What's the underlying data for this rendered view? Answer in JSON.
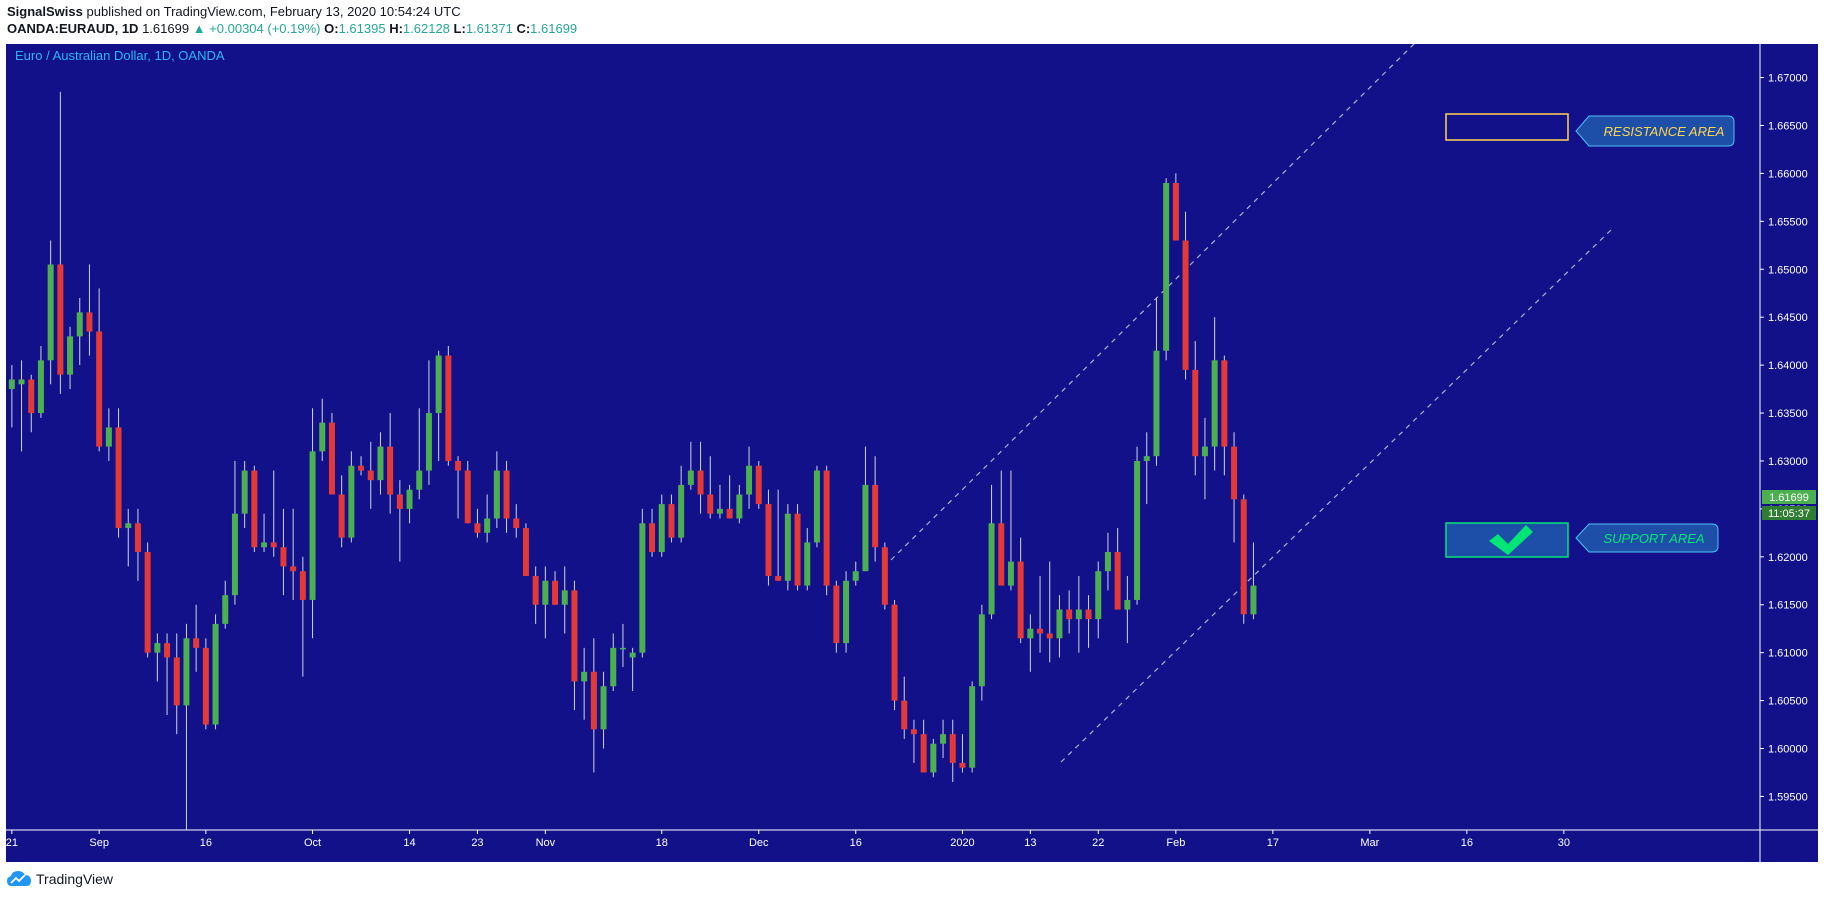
{
  "header": {
    "author": "SignalSwiss",
    "published": "published on TradingView.com, February 13, 2020 10:54:24 UTC",
    "symbol": "OANDA:EURAUD, 1D",
    "last": "1.61699",
    "change": "▲ +0.00304 (+0.19%)",
    "o_label": "O:",
    "o_val": "1.61395",
    "h_label": "H:",
    "h_val": "1.62128",
    "l_label": "L:",
    "l_val": "1.61371",
    "c_label": "C:",
    "c_val": "1.61699"
  },
  "footer": {
    "brand": "TradingView"
  },
  "chart_data": {
    "type": "candlestick",
    "title": "Euro / Australian Dollar, 1D, OANDA",
    "ylim": [
      1.5915,
      1.6735
    ],
    "y_ticks": [
      "1.67000",
      "1.66500",
      "1.66000",
      "1.65500",
      "1.65000",
      "1.64500",
      "1.64000",
      "1.63500",
      "1.63000",
      "1.62500",
      "1.62000",
      "1.61500",
      "1.61000",
      "1.60500",
      "1.60000",
      "1.59500"
    ],
    "x_ticks": [
      {
        "label": "21",
        "i": 0.5
      },
      {
        "label": "Sep",
        "i": 9.5
      },
      {
        "label": "16",
        "i": 20.5
      },
      {
        "label": "Oct",
        "i": 31.5
      },
      {
        "label": "14",
        "i": 41.5
      },
      {
        "label": "23",
        "i": 48.5
      },
      {
        "label": "Nov",
        "i": 55.5
      },
      {
        "label": "18",
        "i": 67.5
      },
      {
        "label": "Dec",
        "i": 77.5
      },
      {
        "label": "16",
        "i": 87.5
      },
      {
        "label": "2020",
        "i": 98.5
      },
      {
        "label": "13",
        "i": 105.5
      },
      {
        "label": "22",
        "i": 112.5
      },
      {
        "label": "Feb",
        "i": 120.5
      },
      {
        "label": "17",
        "i": 130.5
      },
      {
        "label": "Mar",
        "i": 140.5
      },
      {
        "label": "16",
        "i": 150.5
      },
      {
        "label": "30",
        "i": 160.5
      }
    ],
    "current_price_label": "1.61699",
    "countdown_label": "11:05:37",
    "annotations": {
      "resistance_label": "RESISTANCE AREA",
      "support_label": "SUPPORT AREA"
    },
    "colors": {
      "background": "#12118a",
      "up": "#4caf50",
      "down": "#e53935",
      "text": "#ffffff",
      "title": "#29b6f6",
      "resistance_text": "#ffd54f",
      "support_text": "#00e676"
    },
    "candles": [
      [
        1.6375,
        1.64,
        1.6335,
        1.6385
      ],
      [
        1.638,
        1.6405,
        1.631,
        1.6385
      ],
      [
        1.6385,
        1.639,
        1.633,
        1.635
      ],
      [
        1.635,
        1.642,
        1.6345,
        1.6405
      ],
      [
        1.6405,
        1.653,
        1.638,
        1.6505
      ],
      [
        1.6505,
        1.6685,
        1.637,
        1.639
      ],
      [
        1.639,
        1.644,
        1.6375,
        1.643
      ],
      [
        1.643,
        1.647,
        1.64,
        1.6455
      ],
      [
        1.6455,
        1.6505,
        1.641,
        1.6435
      ],
      [
        1.6435,
        1.648,
        1.631,
        1.6315
      ],
      [
        1.6315,
        1.6355,
        1.63,
        1.6335
      ],
      [
        1.6335,
        1.6355,
        1.622,
        1.623
      ],
      [
        1.623,
        1.625,
        1.619,
        1.6235
      ],
      [
        1.6235,
        1.625,
        1.6175,
        1.6205
      ],
      [
        1.6205,
        1.6215,
        1.6095,
        1.61
      ],
      [
        1.61,
        1.612,
        1.607,
        1.611
      ],
      [
        1.611,
        1.612,
        1.6035,
        1.6095
      ],
      [
        1.6095,
        1.612,
        1.6015,
        1.6045
      ],
      [
        1.6045,
        1.613,
        1.5915,
        1.6115
      ],
      [
        1.6115,
        1.615,
        1.608,
        1.6105
      ],
      [
        1.6105,
        1.6115,
        1.602,
        1.6025
      ],
      [
        1.6025,
        1.614,
        1.602,
        1.613
      ],
      [
        1.613,
        1.6175,
        1.6125,
        1.616
      ],
      [
        1.616,
        1.63,
        1.615,
        1.6245
      ],
      [
        1.6245,
        1.63,
        1.623,
        1.629
      ],
      [
        1.629,
        1.6295,
        1.6205,
        1.621
      ],
      [
        1.621,
        1.6245,
        1.6205,
        1.6215
      ],
      [
        1.6215,
        1.629,
        1.62,
        1.621
      ],
      [
        1.621,
        1.625,
        1.616,
        1.619
      ],
      [
        1.619,
        1.625,
        1.6155,
        1.6185
      ],
      [
        1.6185,
        1.62,
        1.6075,
        1.6155
      ],
      [
        1.6155,
        1.6355,
        1.6115,
        1.631
      ],
      [
        1.631,
        1.6365,
        1.63,
        1.634
      ],
      [
        1.634,
        1.635,
        1.6265,
        1.6265
      ],
      [
        1.6265,
        1.6285,
        1.621,
        1.622
      ],
      [
        1.622,
        1.631,
        1.6215,
        1.6295
      ],
      [
        1.6295,
        1.6305,
        1.6285,
        1.629
      ],
      [
        1.629,
        1.632,
        1.625,
        1.628
      ],
      [
        1.628,
        1.633,
        1.6265,
        1.6315
      ],
      [
        1.6315,
        1.635,
        1.6245,
        1.6265
      ],
      [
        1.6265,
        1.628,
        1.6195,
        1.625
      ],
      [
        1.625,
        1.6275,
        1.6235,
        1.627
      ],
      [
        1.627,
        1.6355,
        1.626,
        1.629
      ],
      [
        1.629,
        1.6405,
        1.6275,
        1.635
      ],
      [
        1.635,
        1.6415,
        1.63,
        1.641
      ],
      [
        1.641,
        1.642,
        1.6295,
        1.63
      ],
      [
        1.63,
        1.6305,
        1.624,
        1.629
      ],
      [
        1.629,
        1.63,
        1.6235,
        1.6235
      ],
      [
        1.6235,
        1.625,
        1.622,
        1.6225
      ],
      [
        1.6225,
        1.6265,
        1.6215,
        1.624
      ],
      [
        1.624,
        1.631,
        1.623,
        1.629
      ],
      [
        1.629,
        1.63,
        1.6225,
        1.624
      ],
      [
        1.624,
        1.6255,
        1.622,
        1.623
      ],
      [
        1.623,
        1.6235,
        1.618,
        1.618
      ],
      [
        1.618,
        1.619,
        1.613,
        1.615
      ],
      [
        1.615,
        1.619,
        1.6115,
        1.6175
      ],
      [
        1.6175,
        1.6185,
        1.615,
        1.615
      ],
      [
        1.615,
        1.619,
        1.612,
        1.6165
      ],
      [
        1.6165,
        1.6175,
        1.604,
        1.607
      ],
      [
        1.607,
        1.6105,
        1.603,
        1.608
      ],
      [
        1.608,
        1.6115,
        1.5975,
        1.602
      ],
      [
        1.602,
        1.608,
        1.6,
        1.6065
      ],
      [
        1.6065,
        1.612,
        1.606,
        1.6105
      ],
      [
        1.6105,
        1.613,
        1.6085,
        1.6105
      ],
      [
        1.6095,
        1.6105,
        1.606,
        1.61
      ],
      [
        1.61,
        1.625,
        1.6095,
        1.6235
      ],
      [
        1.6235,
        1.625,
        1.62,
        1.6205
      ],
      [
        1.6205,
        1.6265,
        1.62,
        1.6255
      ],
      [
        1.6255,
        1.6265,
        1.6215,
        1.622
      ],
      [
        1.622,
        1.6295,
        1.6215,
        1.6275
      ],
      [
        1.6275,
        1.632,
        1.627,
        1.629
      ],
      [
        1.629,
        1.632,
        1.6245,
        1.6265
      ],
      [
        1.6265,
        1.6305,
        1.624,
        1.6245
      ],
      [
        1.6245,
        1.6275,
        1.624,
        1.625
      ],
      [
        1.625,
        1.6285,
        1.624,
        1.624
      ],
      [
        1.624,
        1.6275,
        1.6235,
        1.6265
      ],
      [
        1.6265,
        1.6315,
        1.625,
        1.6295
      ],
      [
        1.6295,
        1.63,
        1.625,
        1.6255
      ],
      [
        1.6255,
        1.627,
        1.617,
        1.618
      ],
      [
        1.618,
        1.627,
        1.6175,
        1.6175
      ],
      [
        1.6175,
        1.6255,
        1.6165,
        1.6245
      ],
      [
        1.6245,
        1.6255,
        1.6165,
        1.617
      ],
      [
        1.617,
        1.623,
        1.6165,
        1.6215
      ],
      [
        1.6215,
        1.6295,
        1.621,
        1.629
      ],
      [
        1.629,
        1.6295,
        1.616,
        1.617
      ],
      [
        1.617,
        1.6175,
        1.61,
        1.611
      ],
      [
        1.611,
        1.6185,
        1.61,
        1.6175
      ],
      [
        1.6175,
        1.6195,
        1.617,
        1.6185
      ],
      [
        1.6185,
        1.6315,
        1.6185,
        1.6275
      ],
      [
        1.6275,
        1.6305,
        1.6195,
        1.621
      ],
      [
        1.621,
        1.6215,
        1.6145,
        1.615
      ],
      [
        1.615,
        1.6155,
        1.604,
        1.605
      ],
      [
        1.605,
        1.6075,
        1.601,
        1.602
      ],
      [
        1.602,
        1.603,
        1.5985,
        1.6015
      ],
      [
        1.6015,
        1.603,
        1.5975,
        1.5975
      ],
      [
        1.5975,
        1.601,
        1.597,
        1.6005
      ],
      [
        1.6005,
        1.603,
        1.599,
        1.6015
      ],
      [
        1.6015,
        1.603,
        1.5965,
        1.5985
      ],
      [
        1.5985,
        1.6015,
        1.5975,
        1.598
      ],
      [
        1.598,
        1.607,
        1.5975,
        1.6065
      ],
      [
        1.6065,
        1.615,
        1.605,
        1.614
      ],
      [
        1.614,
        1.6275,
        1.6135,
        1.6235
      ],
      [
        1.6235,
        1.629,
        1.6175,
        1.617
      ],
      [
        1.617,
        1.629,
        1.6165,
        1.6195
      ],
      [
        1.6195,
        1.622,
        1.611,
        1.6115
      ],
      [
        1.6115,
        1.614,
        1.608,
        1.6125
      ],
      [
        1.6125,
        1.618,
        1.61,
        1.612
      ],
      [
        1.612,
        1.6195,
        1.609,
        1.6115
      ],
      [
        1.6115,
        1.616,
        1.6095,
        1.6145
      ],
      [
        1.6145,
        1.6165,
        1.612,
        1.6135
      ],
      [
        1.6135,
        1.618,
        1.61,
        1.6145
      ],
      [
        1.6145,
        1.616,
        1.6105,
        1.6135
      ],
      [
        1.6135,
        1.6195,
        1.6115,
        1.6185
      ],
      [
        1.6185,
        1.6225,
        1.6165,
        1.6205
      ],
      [
        1.6205,
        1.623,
        1.6145,
        1.6145
      ],
      [
        1.6145,
        1.618,
        1.611,
        1.6155
      ],
      [
        1.6155,
        1.6315,
        1.615,
        1.63
      ],
      [
        1.63,
        1.633,
        1.6255,
        1.6305
      ],
      [
        1.6305,
        1.647,
        1.6295,
        1.6415
      ],
      [
        1.6415,
        1.6595,
        1.6405,
        1.659
      ],
      [
        1.659,
        1.66,
        1.653,
        1.653
      ],
      [
        1.653,
        1.656,
        1.6385,
        1.6395
      ],
      [
        1.6395,
        1.6425,
        1.6285,
        1.6305
      ],
      [
        1.6305,
        1.6345,
        1.626,
        1.6315
      ],
      [
        1.6315,
        1.645,
        1.629,
        1.6405
      ],
      [
        1.6405,
        1.641,
        1.6285,
        1.6315
      ],
      [
        1.6315,
        1.633,
        1.6215,
        1.626
      ],
      [
        1.626,
        1.6265,
        1.613,
        1.614
      ],
      [
        1.614,
        1.6215,
        1.6135,
        1.617
      ]
    ]
  }
}
